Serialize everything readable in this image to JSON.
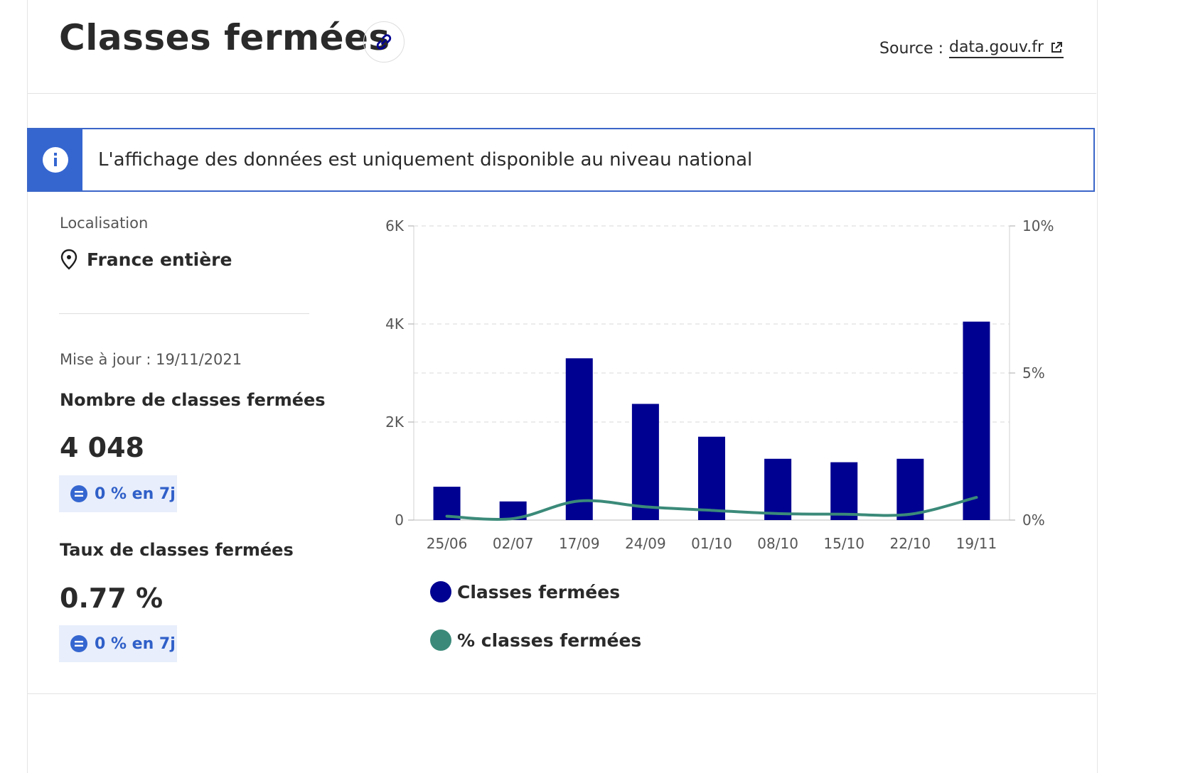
{
  "header": {
    "title": "Classes fermées",
    "source_label": "Source :",
    "source_link": "data.gouv.fr"
  },
  "notice": {
    "text": "L'affichage des données est uniquement disponible au niveau national"
  },
  "sidebar": {
    "location_label": "Localisation",
    "location_value": "France entière",
    "updated": "Mise à jour : 19/11/2021",
    "metric1_label": "Nombre de classes fermées",
    "metric1_value": "4 048",
    "metric1_badge": "0 % en 7j",
    "metric2_label": "Taux de classes fermées",
    "metric2_value": "0.77 %",
    "metric2_badge": "0 % en 7j"
  },
  "colors": {
    "bar": "#000091",
    "line": "#3b8a79",
    "accent": "#3566d0"
  },
  "icons": [
    "link-icon",
    "external-link-icon",
    "info-icon",
    "location-pin-icon",
    "equal-icon"
  ],
  "chart_data": {
    "type": "bar",
    "categories": [
      "25/06",
      "02/07",
      "17/09",
      "24/09",
      "01/10",
      "08/10",
      "15/10",
      "22/10",
      "19/11"
    ],
    "series": [
      {
        "name": "Classes fermées",
        "type": "bar",
        "axis": "left",
        "values": [
          680,
          380,
          3300,
          2370,
          1700,
          1250,
          1180,
          1250,
          4048
        ]
      },
      {
        "name": "% classes fermées",
        "type": "line",
        "axis": "right",
        "values": [
          0.13,
          0.05,
          0.65,
          0.45,
          0.33,
          0.22,
          0.2,
          0.2,
          0.77
        ]
      }
    ],
    "y_left": {
      "ticks": [
        "0",
        "2K",
        "4K",
        "6K"
      ],
      "tick_values": [
        0,
        2000,
        4000,
        6000
      ],
      "ylim": [
        0,
        6000
      ]
    },
    "y_right": {
      "ticks": [
        "0%",
        "5%",
        "10%"
      ],
      "tick_values": [
        0,
        5,
        10
      ],
      "ylim": [
        0,
        10
      ]
    },
    "grid": true,
    "legend": "bottom"
  }
}
